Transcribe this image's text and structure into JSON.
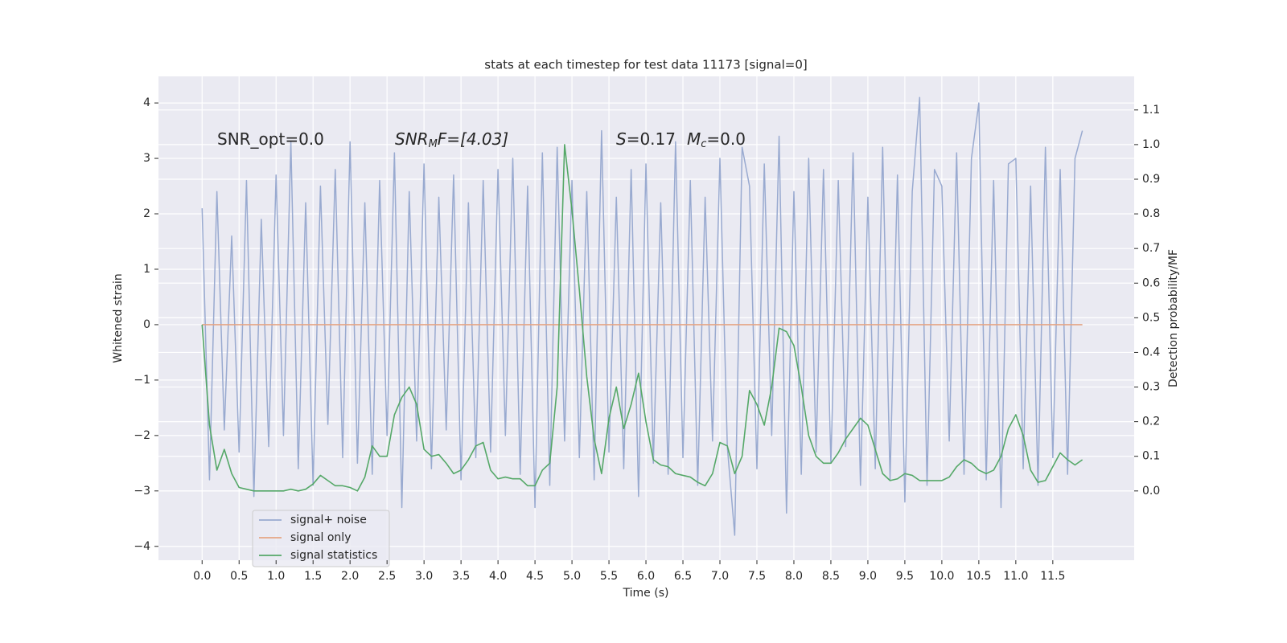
{
  "chart_data": {
    "type": "line",
    "title": "stats at each timestep for test data 11173 [signal=0]",
    "xlabel": "Time (s)",
    "ylabel": "Whitened strain",
    "y2label": "Detection probability/MF",
    "annotations": [
      {
        "parts": [
          "SNR_opt=0.0"
        ]
      },
      {
        "parts": [
          "SNR",
          "M",
          "F=[4.03]"
        ]
      },
      {
        "parts": [
          "S",
          "=0.17",
          "M",
          "c",
          "=0.0"
        ]
      }
    ],
    "grid": true,
    "legend": "lower left",
    "background": "#eaeaf2",
    "x": [
      0,
      0.1,
      0.2,
      0.3,
      0.4,
      0.5,
      0.6,
      0.7,
      0.8,
      0.9,
      1,
      1.1,
      1.2,
      1.3,
      1.4,
      1.5,
      1.6,
      1.7,
      1.8,
      1.9,
      2,
      2.1,
      2.2,
      2.3,
      2.4,
      2.5,
      2.6,
      2.7,
      2.8,
      2.9,
      3,
      3.1,
      3.2,
      3.3,
      3.4,
      3.5,
      3.6,
      3.7,
      3.8,
      3.9,
      4,
      4.1,
      4.2,
      4.3,
      4.4,
      4.5,
      4.6,
      4.7,
      4.8,
      4.9,
      5,
      5.1,
      5.2,
      5.3,
      5.4,
      5.5,
      5.6,
      5.7,
      5.8,
      5.9,
      6,
      6.1,
      6.2,
      6.3,
      6.4,
      6.5,
      6.6,
      6.7,
      6.8,
      6.9,
      7,
      7.1,
      7.2,
      7.3,
      7.4,
      7.5,
      7.6,
      7.7,
      7.8,
      7.9,
      8,
      8.1,
      8.2,
      8.3,
      8.4,
      8.5,
      8.6,
      8.7,
      8.8,
      8.9,
      9,
      9.1,
      9.2,
      9.3,
      9.4,
      9.5,
      9.6,
      9.7,
      9.8,
      9.9,
      10,
      10.1,
      10.2,
      10.3,
      10.4,
      10.5,
      10.6,
      10.7,
      10.8,
      10.9,
      11,
      11.1,
      11.2,
      11.3,
      11.4,
      11.5,
      11.6,
      11.7,
      11.8,
      11.9
    ],
    "series": [
      {
        "name": "signal+ noise",
        "color": "#99aad0",
        "values": [
          2.1,
          -2.8,
          2.4,
          -1.9,
          1.6,
          -2.3,
          2.6,
          -3.1,
          1.9,
          -2.2,
          2.7,
          -2.0,
          3.3,
          -2.6,
          2.2,
          -2.9,
          2.5,
          -1.8,
          2.8,
          -2.4,
          3.3,
          -2.5,
          2.2,
          -2.7,
          2.6,
          -2.0,
          3.1,
          -3.3,
          2.4,
          -2.1,
          2.9,
          -2.6,
          2.3,
          -1.9,
          2.7,
          -2.8,
          2.2,
          -2.4,
          2.6,
          -2.3,
          2.8,
          -2.0,
          3.0,
          -2.7,
          2.5,
          -3.3,
          3.1,
          -2.9,
          3.2,
          -2.1,
          2.6,
          -2.4,
          2.4,
          -2.8,
          3.5,
          -2.3,
          2.3,
          -2.6,
          2.8,
          -3.1,
          2.9,
          -2.5,
          2.2,
          -2.7,
          3.3,
          -2.4,
          2.6,
          -2.9,
          2.3,
          -2.1,
          3.0,
          -2.2,
          -3.8,
          3.2,
          2.5,
          -2.6,
          2.9,
          -2.0,
          3.4,
          -3.4,
          2.4,
          -2.7,
          3.0,
          -2.3,
          2.8,
          -2.5,
          2.6,
          -2.2,
          3.1,
          -2.9,
          2.3,
          -2.6,
          3.2,
          -2.8,
          2.7,
          -3.2,
          2.4,
          4.1,
          -2.9,
          2.8,
          2.5,
          -2.1,
          3.1,
          -2.7,
          3.0,
          4.0,
          -2.8,
          2.6,
          -3.3,
          2.9,
          3.0,
          -2.6,
          2.5,
          -2.9,
          3.2,
          -2.4,
          2.8,
          -2.7,
          3.0,
          3.5
        ]
      },
      {
        "name": "signal only",
        "color": "#e5a585",
        "values": [
          0,
          0,
          0,
          0,
          0,
          0,
          0,
          0,
          0,
          0,
          0,
          0,
          0,
          0,
          0,
          0,
          0,
          0,
          0,
          0,
          0,
          0,
          0,
          0,
          0,
          0,
          0,
          0,
          0,
          0,
          0,
          0,
          0,
          0,
          0,
          0,
          0,
          0,
          0,
          0,
          0,
          0,
          0,
          0,
          0,
          0,
          0,
          0,
          0,
          0,
          0,
          0,
          0,
          0,
          0,
          0,
          0,
          0,
          0,
          0,
          0,
          0,
          0,
          0,
          0,
          0,
          0,
          0,
          0,
          0,
          0,
          0,
          0,
          0,
          0,
          0,
          0,
          0,
          0,
          0,
          0,
          0,
          0,
          0,
          0,
          0,
          0,
          0,
          0,
          0,
          0,
          0,
          0,
          0,
          0,
          0,
          0,
          0,
          0,
          0,
          0,
          0,
          0,
          0,
          0,
          0,
          0,
          0,
          0,
          0,
          0,
          0,
          0,
          0,
          0,
          0,
          0,
          0,
          0,
          0
        ]
      },
      {
        "name": "signal statistics",
        "color": "#55a868",
        "axis": "y2",
        "values": [
          0.48,
          0.19,
          0.06,
          0.12,
          0.05,
          0.01,
          0.005,
          0,
          0,
          0,
          0,
          0,
          0.005,
          0,
          0.005,
          0.02,
          0.045,
          0.03,
          0.015,
          0.015,
          0.01,
          0,
          0.04,
          0.13,
          0.1,
          0.1,
          0.22,
          0.27,
          0.3,
          0.25,
          0.12,
          0.1,
          0.105,
          0.08,
          0.05,
          0.06,
          0.09,
          0.13,
          0.14,
          0.06,
          0.035,
          0.04,
          0.035,
          0.035,
          0.015,
          0.015,
          0.06,
          0.08,
          0.3,
          1.0,
          0.81,
          0.58,
          0.33,
          0.15,
          0.05,
          0.21,
          0.3,
          0.18,
          0.25,
          0.34,
          0.2,
          0.09,
          0.075,
          0.07,
          0.05,
          0.045,
          0.04,
          0.025,
          0.015,
          0.05,
          0.14,
          0.13,
          0.05,
          0.1,
          0.29,
          0.25,
          0.19,
          0.3,
          0.47,
          0.46,
          0.42,
          0.3,
          0.16,
          0.1,
          0.08,
          0.08,
          0.11,
          0.15,
          0.18,
          0.21,
          0.19,
          0.12,
          0.05,
          0.03,
          0.035,
          0.05,
          0.045,
          0.03,
          0.03,
          0.03,
          0.03,
          0.04,
          0.07,
          0.09,
          0.08,
          0.06,
          0.05,
          0.06,
          0.1,
          0.18,
          0.22,
          0.16,
          0.06,
          0.025,
          0.03,
          0.07,
          0.11,
          0.09,
          0.075,
          0.09
        ]
      }
    ],
    "xlim": [
      -0.59,
      12.6
    ],
    "xticks": [
      {
        "value": 0,
        "label": "0.0"
      },
      {
        "value": 0.5,
        "label": "0.5"
      },
      {
        "value": 1,
        "label": "1.0"
      },
      {
        "value": 1.5,
        "label": "1.5"
      },
      {
        "value": 2,
        "label": "2.0"
      },
      {
        "value": 2.5,
        "label": "2.5"
      },
      {
        "value": 3,
        "label": "3.0"
      },
      {
        "value": 3.5,
        "label": "3.5"
      },
      {
        "value": 4,
        "label": "4.0"
      },
      {
        "value": 4.5,
        "label": "4.5"
      },
      {
        "value": 5,
        "label": "5.0"
      },
      {
        "value": 5.5,
        "label": "5.5"
      },
      {
        "value": 6,
        "label": "6.0"
      },
      {
        "value": 6.5,
        "label": "6.5"
      },
      {
        "value": 7,
        "label": "7.0"
      },
      {
        "value": 7.5,
        "label": "7.5"
      },
      {
        "value": 8,
        "label": "8.0"
      },
      {
        "value": 8.5,
        "label": "8.5"
      },
      {
        "value": 9,
        "label": "9.0"
      },
      {
        "value": 9.5,
        "label": "9.5"
      },
      {
        "value": 10,
        "label": "10.0"
      },
      {
        "value": 10.5,
        "label": "10.5"
      },
      {
        "value": 11,
        "label": "11.0"
      },
      {
        "value": 11.5,
        "label": "11.5"
      }
    ],
    "ylim": [
      -4.25,
      4.48
    ],
    "yticks": [
      {
        "value": -4,
        "label": "−4"
      },
      {
        "value": -3,
        "label": "−3"
      },
      {
        "value": -2,
        "label": "−2"
      },
      {
        "value": -1,
        "label": "−1"
      },
      0,
      1,
      2,
      3,
      4
    ],
    "y2lim": [
      -0.2,
      1.197
    ],
    "y2ticks": [
      {
        "value": 0,
        "label": "0.0"
      },
      {
        "value": 0.1,
        "label": "0.1"
      },
      {
        "value": 0.2,
        "label": "0.2"
      },
      {
        "value": 0.3,
        "label": "0.3"
      },
      {
        "value": 0.4,
        "label": "0.4"
      },
      {
        "value": 0.5,
        "label": "0.5"
      },
      {
        "value": 0.6,
        "label": "0.6"
      },
      {
        "value": 0.7,
        "label": "0.7"
      },
      {
        "value": 0.8,
        "label": "0.8"
      },
      {
        "value": 0.9,
        "label": "0.9"
      },
      {
        "value": 1,
        "label": "1.0"
      },
      {
        "value": 1.1,
        "label": "1.1"
      }
    ]
  }
}
